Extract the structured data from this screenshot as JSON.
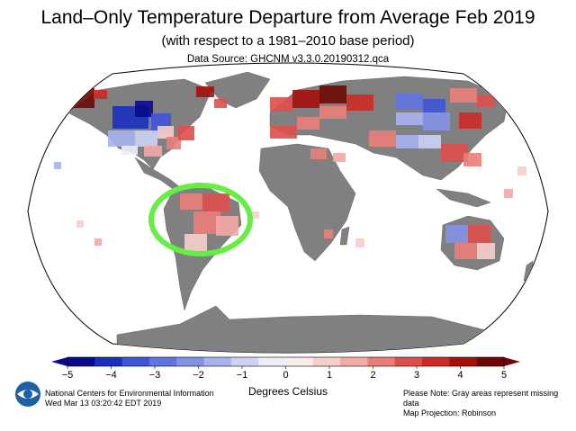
{
  "header": {
    "title": "Land–Only Temperature Departure from Average Feb 2019",
    "subtitle": "(with respect to a 1981–2010 base period)",
    "data_source": "Data Source: GHCNM v3.3.0.20190312.qca"
  },
  "colorbar": {
    "ticks": [
      "−5",
      "−4",
      "−3",
      "−2",
      "−1",
      "0",
      "1",
      "2",
      "3",
      "4",
      "5"
    ],
    "label": "Degrees Celsius",
    "colors": [
      "#0a0a8c",
      "#1b2fbf",
      "#3d55d6",
      "#5f74e0",
      "#8392e6",
      "#a9b3ee",
      "#cdd2f5",
      "#eceef9",
      "#f9eceb",
      "#f6cfcb",
      "#f2aaa5",
      "#ea7d78",
      "#de4f4b",
      "#cc2a26",
      "#a5100c",
      "#6e0806"
    ]
  },
  "map": {
    "missing_data_color": "#808080",
    "ocean_color": "#ffffff",
    "annotation_color": "#66ee44"
  },
  "footer": {
    "org": "National Centers for Environmental Information",
    "timestamp": "Wed Mar 13 03:20:42 EDT 2019",
    "note": "Please Note: Gray areas represent missing data",
    "projection": "Map Projection: Robinson"
  }
}
